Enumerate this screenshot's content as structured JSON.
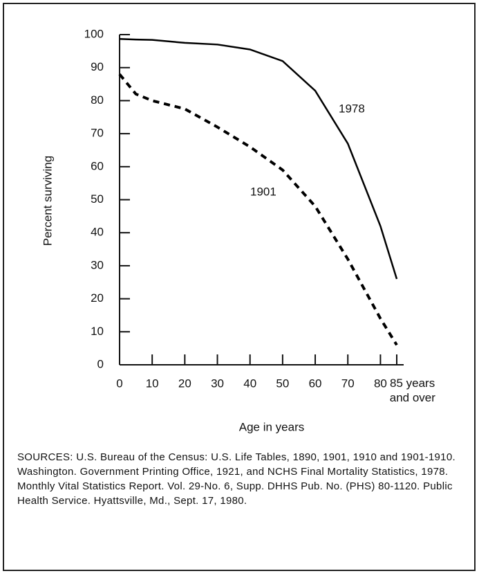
{
  "chart_data": {
    "type": "line",
    "xlabel": "Age in years",
    "ylabel": "Percent surviving",
    "x": [
      0,
      5,
      10,
      20,
      30,
      40,
      50,
      60,
      70,
      80,
      85
    ],
    "series": [
      {
        "name": "1978",
        "color": "#000000",
        "style": "solid",
        "values": [
          98.7,
          98.5,
          98.4,
          97.5,
          97,
          95.5,
          92,
          83,
          67,
          42,
          26
        ]
      },
      {
        "name": "1901",
        "color": "#000000",
        "style": "dashed",
        "values": [
          88,
          82,
          80,
          77.5,
          72,
          66,
          59,
          48,
          32,
          14,
          6
        ]
      }
    ],
    "xlim": [
      0,
      85
    ],
    "ylim": [
      0,
      100
    ],
    "xticks": [
      0,
      10,
      20,
      30,
      40,
      50,
      60,
      70,
      80,
      {
        "value": 85,
        "label": "85 years and over"
      }
    ],
    "yticks": [
      0,
      10,
      20,
      30,
      40,
      50,
      60,
      70,
      80,
      90,
      100
    ],
    "note": "SOURCES: U.S. Bureau of the Census: U.S. Life Tables, 1890, 1901, 1910 and 1901-1910. Washington. Government Printing Office, 1921, and NCHS Final Mortality Statistics, 1978. Monthly Vital Statistics Report. Vol. 29-No. 6, Supp. DHHS Pub. No. (PHS) 80-1120. Public Health Service. Hyattsville, Md., Sept. 17, 1980."
  }
}
